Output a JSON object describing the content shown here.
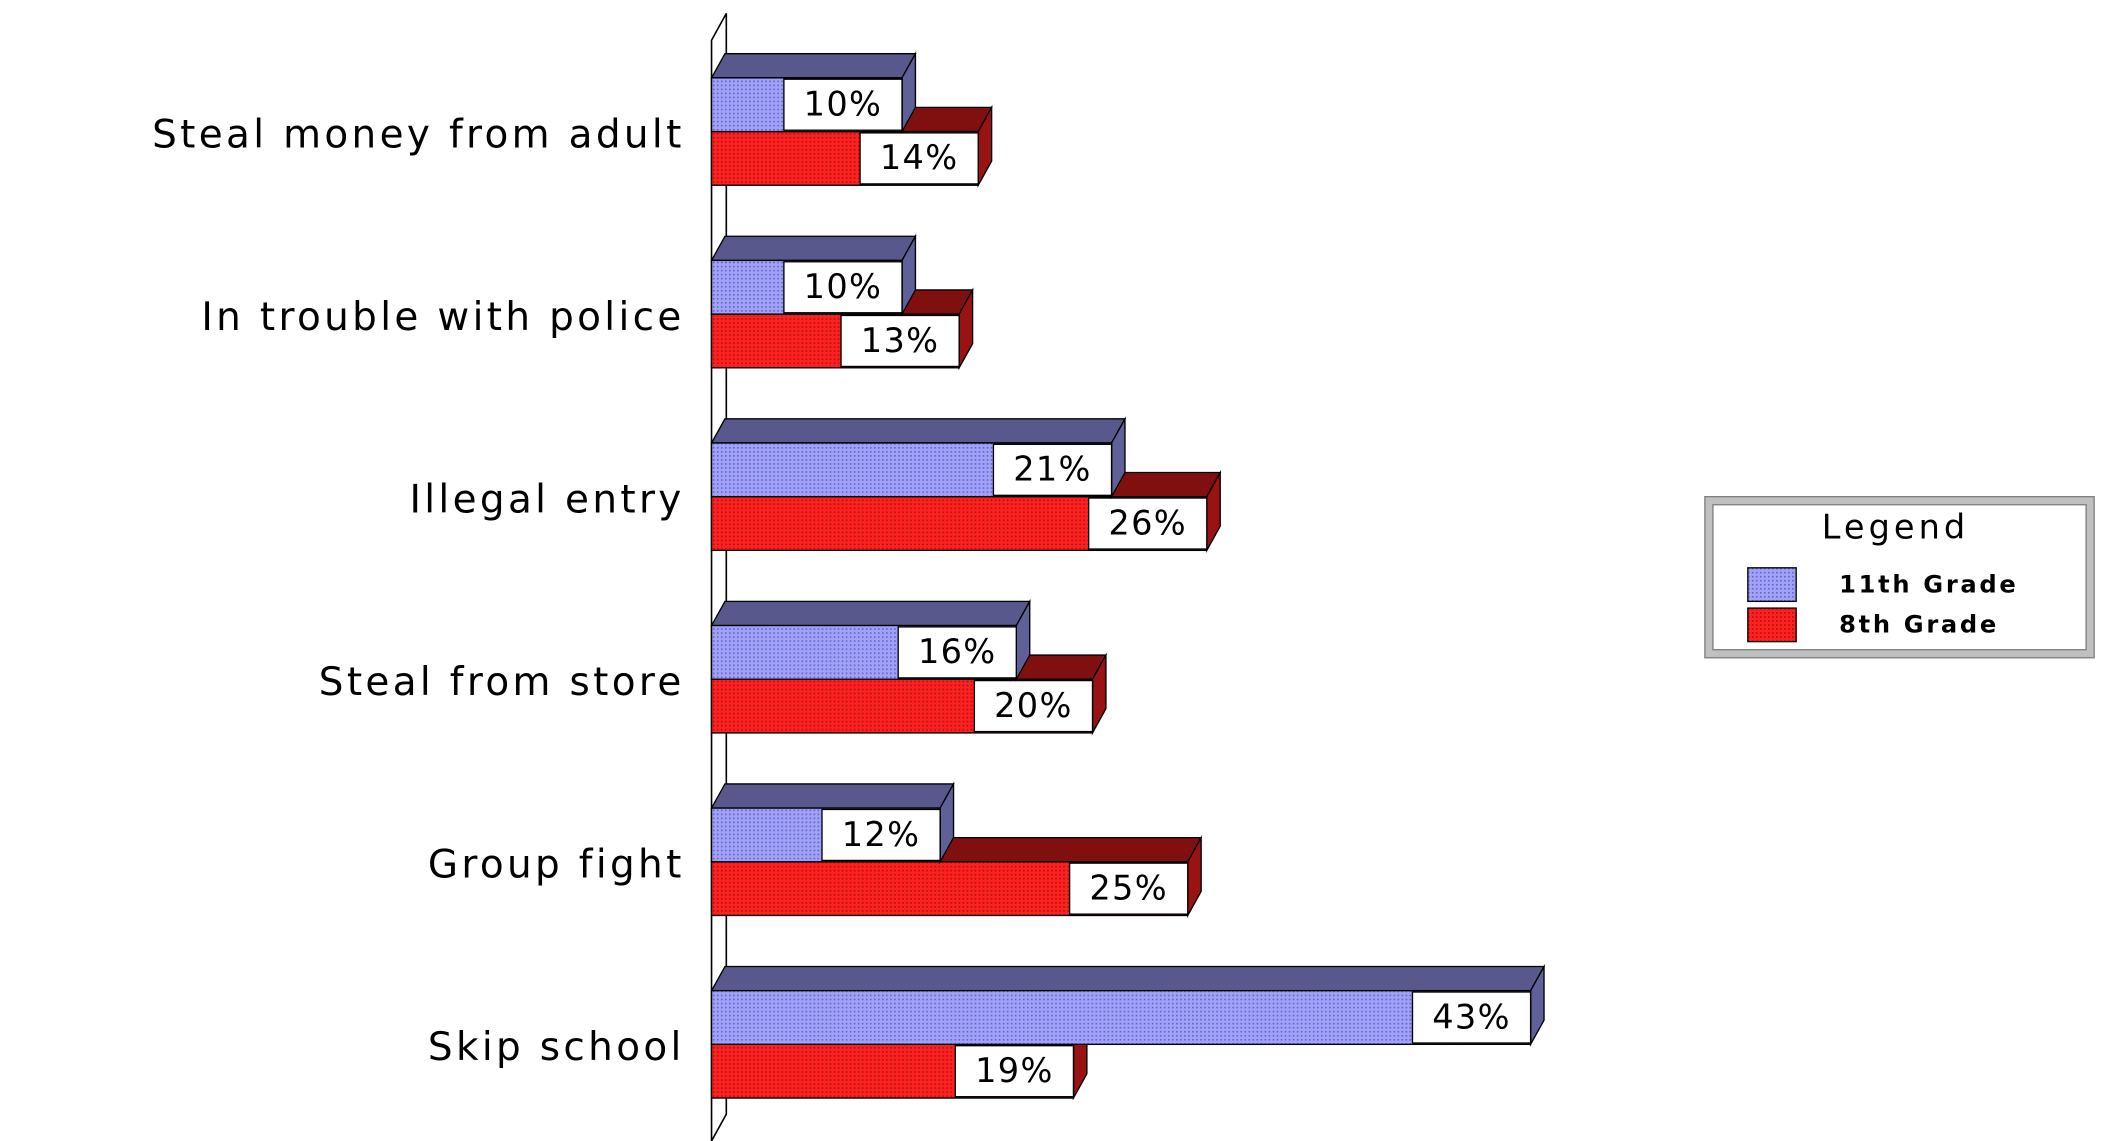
{
  "chart_data": {
    "type": "bar",
    "orientation": "horizontal",
    "3d": true,
    "categories": [
      "Steal money from adult",
      "In trouble with police",
      "Illegal entry",
      "Steal from store",
      "Group fight",
      "Skip school"
    ],
    "series": [
      {
        "name": "11th Grade",
        "color": "#a0a0ff",
        "values": [
          10,
          10,
          21,
          16,
          12,
          43
        ],
        "value_labels": [
          "10%",
          "10%",
          "21%",
          "16%",
          "12%",
          "43%"
        ]
      },
      {
        "name": "8th Grade",
        "color": "#ff2020",
        "values": [
          14,
          13,
          26,
          20,
          25,
          19
        ],
        "value_labels": [
          "14%",
          "13%",
          "26%",
          "20%",
          "25%",
          "19%"
        ]
      }
    ],
    "legend_title": "Legend",
    "legend": "right"
  }
}
